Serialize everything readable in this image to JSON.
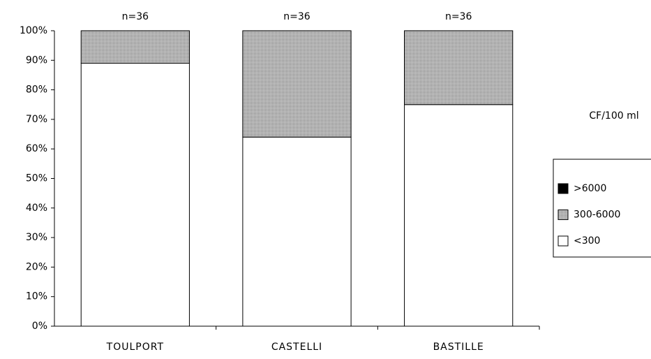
{
  "chart_data": {
    "type": "stacked_bar",
    "categories": [
      "TOULPORT",
      "CASTELLI",
      "BASTILLE"
    ],
    "series": [
      {
        "name": "<300",
        "color": "#ffffff",
        "values": [
          89,
          64,
          75
        ]
      },
      {
        "name": "300-6000",
        "color": "#a9a9a9",
        "values": [
          11,
          36,
          25
        ]
      },
      {
        "name": ">6000",
        "color": "#000000",
        "values": [
          0,
          0,
          0
        ]
      }
    ],
    "annotations": [
      "n=36",
      "n=36",
      "n=36"
    ],
    "legend_title": "CF/100 ml",
    "legend": "right",
    "ylim": [
      0,
      100
    ],
    "yticks": [
      {
        "value": 0,
        "label": "0%"
      },
      {
        "value": 10,
        "label": "10%"
      },
      {
        "value": 20,
        "label": "20%"
      },
      {
        "value": 30,
        "label": "30%"
      },
      {
        "value": 40,
        "label": "40%"
      },
      {
        "value": 50,
        "label": "50%"
      },
      {
        "value": 60,
        "label": "60%"
      },
      {
        "value": 70,
        "label": "70%"
      },
      {
        "value": 80,
        "label": "80%"
      },
      {
        "value": 90,
        "label": "90%"
      },
      {
        "value": 100,
        "label": "100%"
      }
    ]
  }
}
